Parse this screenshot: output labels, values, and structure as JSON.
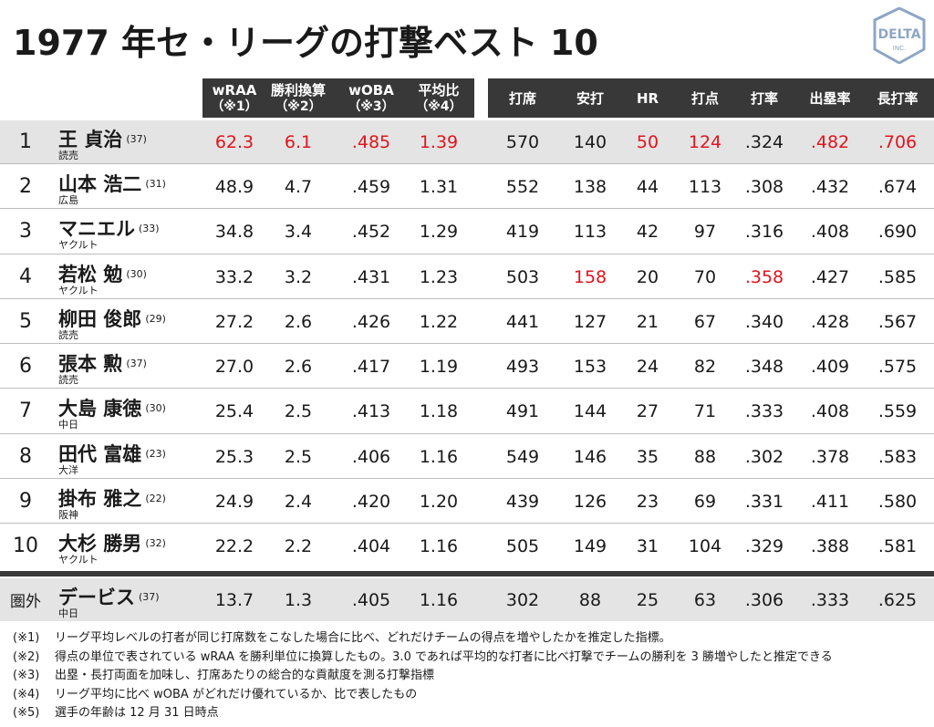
{
  "title": "1977 年セ・リーグの打撃ベスト 10",
  "logo": {
    "text": "DELTA",
    "sub": "INC."
  },
  "headers": [
    {
      "label": "wRAA",
      "sub": "（※1）"
    },
    {
      "label": "勝利換算",
      "sub": "（※2）"
    },
    {
      "label": "wOBA",
      "sub": "（※3）"
    },
    {
      "label": "平均比",
      "sub": "（※4）"
    },
    {
      "label": "打席",
      "sub": ""
    },
    {
      "label": "安打",
      "sub": ""
    },
    {
      "label": "HR",
      "sub": ""
    },
    {
      "label": "打点",
      "sub": ""
    },
    {
      "label": "打率",
      "sub": ""
    },
    {
      "label": "出塁率",
      "sub": ""
    },
    {
      "label": "長打率",
      "sub": ""
    }
  ],
  "rows": [
    {
      "rank": "1",
      "name": "王 貞治",
      "age": "(37)",
      "team": "読売",
      "vals": [
        "62.3",
        "6.1",
        ".485",
        "1.39",
        "570",
        "140",
        "50",
        "124",
        ".324",
        ".482",
        ".706"
      ],
      "red": [
        0,
        1,
        2,
        3,
        6,
        7,
        9,
        10
      ]
    },
    {
      "rank": "2",
      "name": "山本 浩二",
      "age": "(31)",
      "team": "広島",
      "vals": [
        "48.9",
        "4.7",
        ".459",
        "1.31",
        "552",
        "138",
        "44",
        "113",
        ".308",
        ".432",
        ".674"
      ],
      "red": []
    },
    {
      "rank": "3",
      "name": "マニエル",
      "age": "(33)",
      "team": "ヤクルト",
      "vals": [
        "34.8",
        "3.4",
        ".452",
        "1.29",
        "419",
        "113",
        "42",
        "97",
        ".316",
        ".408",
        ".690"
      ],
      "red": []
    },
    {
      "rank": "4",
      "name": "若松 勉",
      "age": "(30)",
      "team": "ヤクルト",
      "vals": [
        "33.2",
        "3.2",
        ".431",
        "1.23",
        "503",
        "158",
        "20",
        "70",
        ".358",
        ".427",
        ".585"
      ],
      "red": [
        5,
        8
      ]
    },
    {
      "rank": "5",
      "name": "柳田 俊郎",
      "age": "(29)",
      "team": "読売",
      "vals": [
        "27.2",
        "2.6",
        ".426",
        "1.22",
        "441",
        "127",
        "21",
        "67",
        ".340",
        ".428",
        ".567"
      ],
      "red": []
    },
    {
      "rank": "6",
      "name": "張本 勲",
      "age": "(37)",
      "team": "読売",
      "vals": [
        "27.0",
        "2.6",
        ".417",
        "1.19",
        "493",
        "153",
        "24",
        "82",
        ".348",
        ".409",
        ".575"
      ],
      "red": []
    },
    {
      "rank": "7",
      "name": "大島 康徳",
      "age": "(30)",
      "team": "中日",
      "vals": [
        "25.4",
        "2.5",
        ".413",
        "1.18",
        "491",
        "144",
        "27",
        "71",
        ".333",
        ".408",
        ".559"
      ],
      "red": []
    },
    {
      "rank": "8",
      "name": "田代 富雄",
      "age": "(23)",
      "team": "大洋",
      "vals": [
        "25.3",
        "2.5",
        ".406",
        "1.16",
        "549",
        "146",
        "35",
        "88",
        ".302",
        ".378",
        ".583"
      ],
      "red": []
    },
    {
      "rank": "9",
      "name": "掛布 雅之",
      "age": "(22)",
      "team": "阪神",
      "vals": [
        "24.9",
        "2.4",
        ".420",
        "1.20",
        "439",
        "126",
        "23",
        "69",
        ".331",
        ".411",
        ".580"
      ],
      "red": []
    },
    {
      "rank": "10",
      "name": "大杉 勝男",
      "age": "(32)",
      "team": "ヤクルト",
      "vals": [
        "22.2",
        "2.2",
        ".404",
        "1.16",
        "505",
        "149",
        "31",
        "104",
        ".329",
        ".388",
        ".581"
      ],
      "red": []
    }
  ],
  "extra": {
    "rank": "圏外",
    "name": "デービス",
    "age": "(37)",
    "team": "中日",
    "vals": [
      "13.7",
      "1.3",
      ".405",
      "1.16",
      "302",
      "88",
      "25",
      "63",
      ".306",
      ".333",
      ".625"
    ],
    "red": []
  },
  "notes": [
    {
      "key": "(※1)",
      "text": "リーグ平均レベルの打者が同じ打席数をこなした場合に比べ、どれだけチームの得点を増やしたかを推定した指標。"
    },
    {
      "key": "(※2)",
      "text": "得点の単位で表されている wRAA を勝利単位に換算したもの。3.0 であれば平均的な打者に比べ打撃でチームの勝利を 3 勝増やしたと推定できる"
    },
    {
      "key": "(※3)",
      "text": "出塁・長打両面を加味し、打席あたりの総合的な貢献度を測る打撃指標"
    },
    {
      "key": "(※4)",
      "text": "リーグ平均に比べ wOBA がどれだけ優れているか、比で表したもの"
    },
    {
      "key": "(※5)",
      "text": "選手の年齢は 12 月 31 日時点"
    }
  ],
  "colors": {
    "header_bg": "#383838",
    "shade": "#e4e4e4",
    "highlight": "#e0141e",
    "logo": "#8ea6c4"
  }
}
